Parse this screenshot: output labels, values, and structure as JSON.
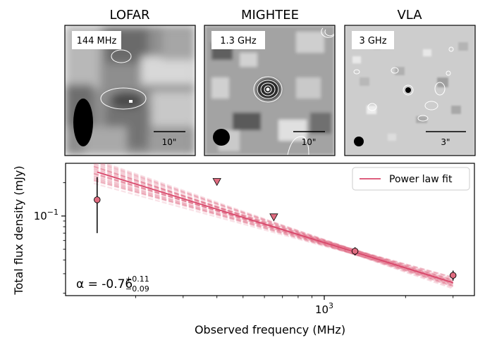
{
  "panels": [
    {
      "title": "LOFAR",
      "freq_label": "144 MHz",
      "scale_label": "10\""
    },
    {
      "title": "MIGHTEE",
      "freq_label": "1.3 GHz",
      "scale_label": "10\""
    },
    {
      "title": "VLA",
      "freq_label": "3 GHz",
      "scale_label": "3\""
    }
  ],
  "colors": {
    "accent": "#d9486b",
    "marker_fill": "#e06c80",
    "ink": "#000000"
  },
  "chart_data": {
    "type": "scatter",
    "xscale": "log",
    "yscale": "log",
    "xlim": [
      110,
      3600
    ],
    "ylim": [
      0.019,
      0.3
    ],
    "xlabel": "Observed frequency (MHz)",
    "ylabel": "Total flux density (mJy)",
    "xticks": [
      {
        "value": 1000,
        "label": "10^3"
      }
    ],
    "yticks": [
      {
        "value": 0.1,
        "label": "10^-1"
      }
    ],
    "legend": {
      "label": "Power law fit",
      "position": "top-right"
    },
    "annotation": {
      "prefix": "α = -0.76",
      "sup": "+0.11",
      "sub": "−0.09"
    },
    "detections": [
      {
        "x": 144,
        "y": 0.14,
        "yerr_low": 0.07,
        "yerr_high": 0.085
      },
      {
        "x": 1300,
        "y": 0.048,
        "yerr_low": 0.004,
        "yerr_high": 0.004
      },
      {
        "x": 3000,
        "y": 0.029,
        "yerr_low": 0.003,
        "yerr_high": 0.003
      }
    ],
    "upper_limits": [
      {
        "x": 400,
        "y": 0.205
      },
      {
        "x": 650,
        "y": 0.098
      }
    ],
    "fit": {
      "alpha": -0.76,
      "alpha_err_plus": 0.11,
      "alpha_err_minus": 0.09,
      "ref_freq": 1300,
      "ref_flux": 0.047
    }
  }
}
